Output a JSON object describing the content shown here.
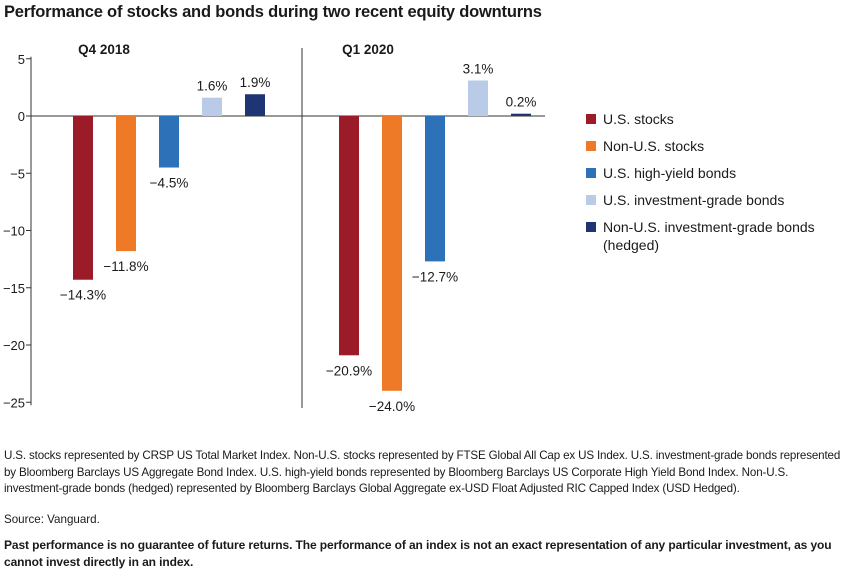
{
  "title": "Performance of stocks and bonds during two recent equity downturns",
  "chart_data": {
    "type": "bar",
    "title": "Performance of stocks and bonds during two recent equity downturns",
    "categories": [
      "Q4 2018",
      "Q1 2020"
    ],
    "series": [
      {
        "name": "U.S. stocks",
        "color": "#9b1c28",
        "values": [
          -14.3,
          -20.9
        ],
        "labels": [
          "−14.3%",
          "−20.9%"
        ]
      },
      {
        "name": "Non-U.S. stocks",
        "color": "#ee7a27",
        "values": [
          -11.8,
          -24.0
        ],
        "labels": [
          "−11.8%",
          "−24.0%"
        ]
      },
      {
        "name": "U.S. high-yield bonds",
        "color": "#2d72b8",
        "values": [
          -4.5,
          -12.7
        ],
        "labels": [
          "−4.5%",
          "−12.7%"
        ]
      },
      {
        "name": "U.S. investment-grade bonds",
        "color": "#b9cbe6",
        "values": [
          1.6,
          3.1
        ],
        "labels": [
          "1.6%",
          "3.1%"
        ]
      },
      {
        "name": "Non-U.S. investment-grade bonds (hedged)",
        "color": "#1f3473",
        "values": [
          1.9,
          0.2
        ],
        "labels": [
          "1.9%",
          "0.2%"
        ]
      }
    ],
    "yticks": [
      5,
      0,
      -5,
      -10,
      -15,
      -20,
      -25
    ],
    "ytick_labels": [
      "5",
      "0",
      "−5",
      "−10",
      "−15",
      "−20",
      "−25"
    ],
    "ylim": [
      -25,
      5
    ],
    "xlabel": "",
    "ylabel": "",
    "grid": false,
    "legend": "right"
  },
  "legend": {
    "items": [
      {
        "label": "U.S. stocks",
        "color": "#9b1c28"
      },
      {
        "label": "Non-U.S. stocks",
        "color": "#ee7a27"
      },
      {
        "label": "U.S. high-yield bonds",
        "color": "#2d72b8"
      },
      {
        "label": "U.S. investment-grade bonds",
        "color": "#b9cbe6"
      },
      {
        "label": "Non-U.S. investment-grade bonds (hedged)",
        "color": "#1f3473"
      }
    ]
  },
  "footnotes": {
    "notes": "U.S. stocks represented by CRSP US Total Market Index. Non-U.S. stocks represented by FTSE Global All Cap ex US Index. U.S. investment-grade bonds represented by Bloomberg Barclays US Aggregate Bond Index. U.S. high-yield bonds represented by Bloomberg Barclays US Corporate High Yield Bond Index. Non-U.S. investment-grade bonds (hedged) represented by Bloomberg Barclays Global Aggregate ex-USD Float Adjusted RIC Capped Index (USD Hedged).",
    "source": "Source: Vanguard.",
    "disclaimer": "Past performance is no guarantee of future returns. The performance of an index is not an exact representation of any particular investment, as you cannot invest directly in an index."
  }
}
